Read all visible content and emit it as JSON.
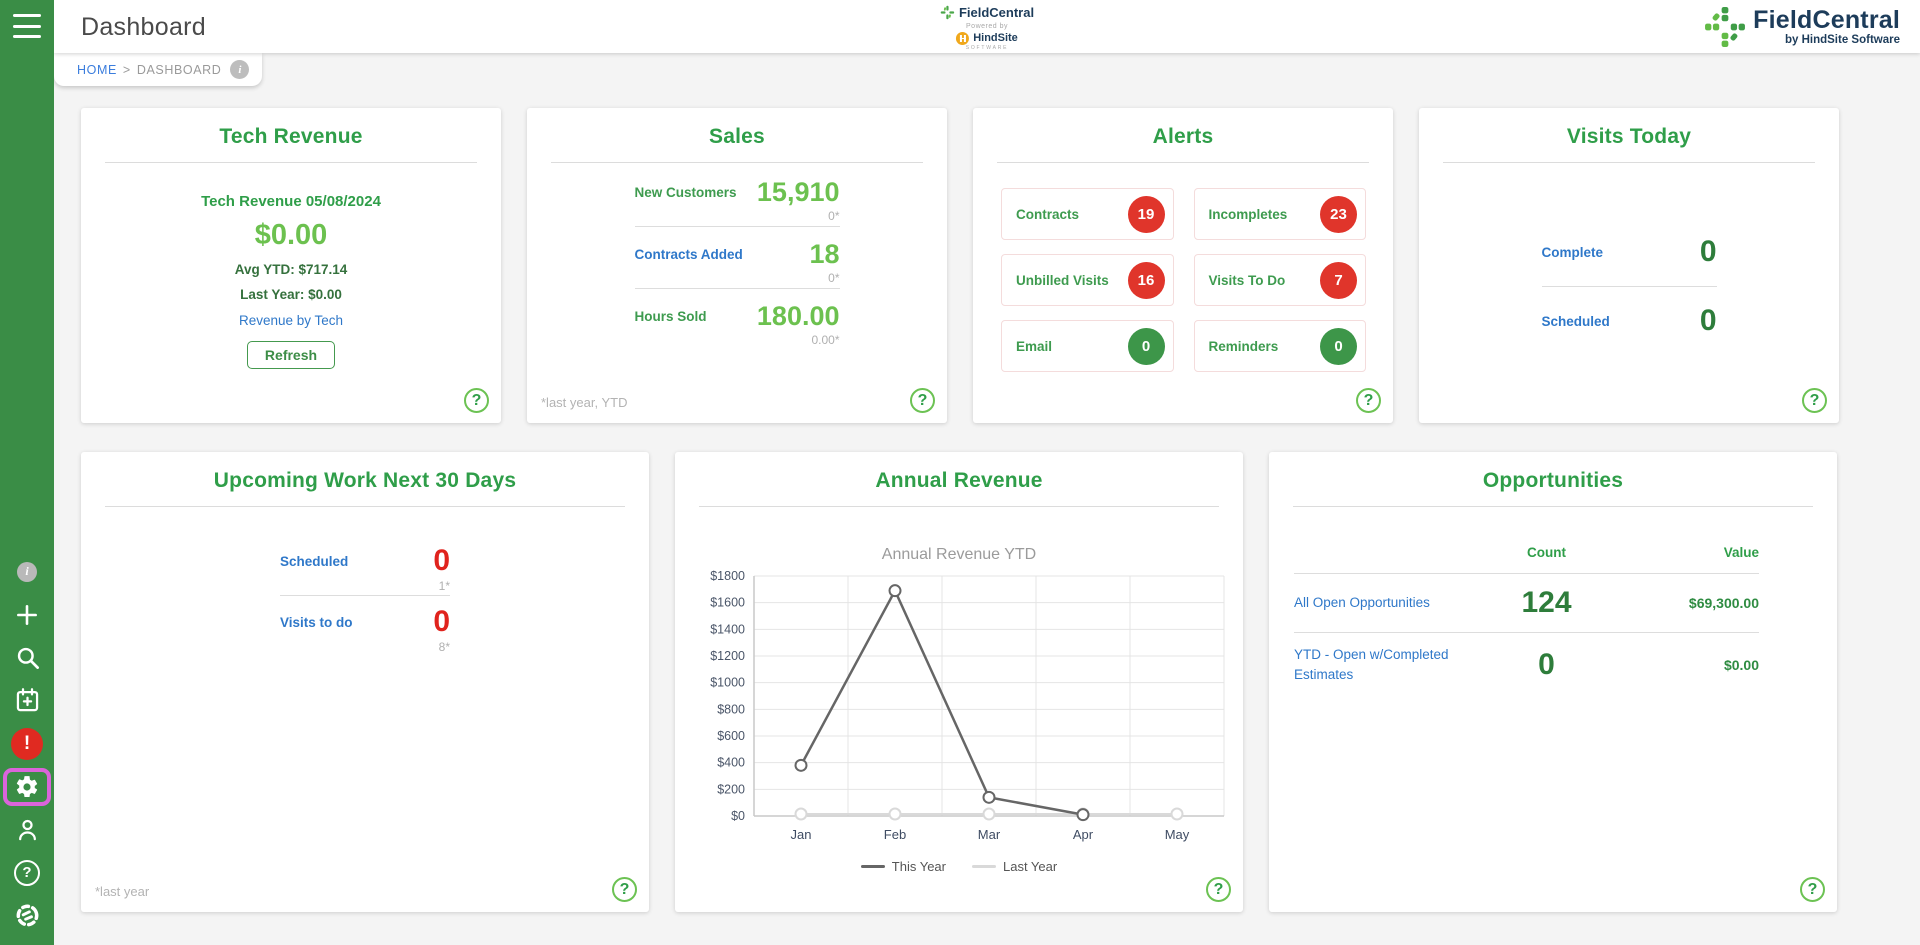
{
  "header": {
    "title": "Dashboard",
    "breadcrumb": {
      "home": "HOME",
      "separator": ">",
      "current": "DASHBOARD"
    },
    "center_logo": {
      "fieldcentral": "FieldCentral",
      "powered_by": "Powered by",
      "hindsite": "HindSite",
      "software": "SOFTWARE"
    },
    "brand": {
      "name": "FieldCentral",
      "tagline": "by HindSite Software"
    }
  },
  "labels": {
    "help": "?",
    "info_glyph": "i",
    "alert_glyph": "!"
  },
  "sidebar": {
    "icons": [
      "info-icon",
      "add-icon",
      "search-icon",
      "schedule-add-icon",
      "alerts-icon",
      "settings-icon",
      "customers-icon",
      "help-icon",
      "hindsite-logo-icon"
    ],
    "active_icon": "settings-icon"
  },
  "cards": {
    "tech_revenue": {
      "title": "Tech Revenue",
      "subtitle": "Tech Revenue 05/08/2024",
      "amount": "$0.00",
      "avg_ytd": "Avg YTD: $717.14",
      "last_year": "Last Year: $0.00",
      "link": "Revenue by Tech",
      "refresh_label": "Refresh"
    },
    "sales": {
      "title": "Sales",
      "rows": [
        {
          "label": "New Customers",
          "value": "15,910",
          "sub": "0*"
        },
        {
          "label": "Contracts Added",
          "value": "18",
          "sub": "0*"
        },
        {
          "label": "Hours Sold",
          "value": "180.00",
          "sub": "0.00*"
        }
      ],
      "footnote": "*last year, YTD"
    },
    "alerts": {
      "title": "Alerts",
      "items": [
        {
          "label": "Contracts",
          "count": "19",
          "color": "red"
        },
        {
          "label": "Incompletes",
          "count": "23",
          "color": "red"
        },
        {
          "label": "Unbilled Visits",
          "count": "16",
          "color": "red"
        },
        {
          "label": "Visits To Do",
          "count": "7",
          "color": "red"
        },
        {
          "label": "Email",
          "count": "0",
          "color": "green"
        },
        {
          "label": "Reminders",
          "count": "0",
          "color": "green"
        }
      ]
    },
    "visits_today": {
      "title": "Visits Today",
      "rows": [
        {
          "label": "Complete",
          "value": "0"
        },
        {
          "label": "Scheduled",
          "value": "0"
        }
      ]
    },
    "upcoming_work": {
      "title": "Upcoming Work Next 30 Days",
      "rows": [
        {
          "label": "Scheduled",
          "value": "0",
          "sub": "1*"
        },
        {
          "label": "Visits to do",
          "value": "0",
          "sub": "8*"
        }
      ],
      "footnote": "*last year"
    },
    "annual_revenue": {
      "title": "Annual Revenue"
    },
    "opportunities": {
      "title": "Opportunities",
      "col_count": "Count",
      "col_value": "Value",
      "rows": [
        {
          "label": "All Open Opportunities",
          "count": "124",
          "value": "$69,300.00"
        },
        {
          "label": "YTD - Open w/Completed Estimates",
          "count": "0",
          "value": "$0.00"
        }
      ]
    }
  },
  "chart_data": {
    "type": "line",
    "title": "Annual Revenue YTD",
    "categories": [
      "Jan",
      "Feb",
      "Mar",
      "Apr",
      "May"
    ],
    "series": [
      {
        "name": "This Year",
        "color": "#666666",
        "values": [
          380,
          1690,
          140,
          10,
          null
        ]
      },
      {
        "name": "Last Year",
        "color": "#d9d9d9",
        "values": [
          15,
          15,
          15,
          15,
          15
        ]
      }
    ],
    "ylabel_ticks": [
      "$0",
      "$200",
      "$400",
      "$600",
      "$800",
      "$1000",
      "$1200",
      "$1400",
      "$1600",
      "$1800"
    ],
    "ylim": [
      0,
      1800
    ],
    "ytick_step": 200,
    "ytick_prefix": "$",
    "grid": true,
    "legend_position": "bottom"
  },
  "colors": {
    "sidebar_green": "#3a8d46",
    "accent_green": "#2f9e49",
    "light_green": "#6cc14f",
    "dark_green": "#2e7d3b",
    "link_blue": "#2f78c9",
    "alert_red": "#e0352b",
    "badge_green": "#3d9649",
    "highlight_magenta": "#da64da",
    "brand_navy": "#1d3c5a",
    "hindsite_orange": "#f0a81c"
  }
}
